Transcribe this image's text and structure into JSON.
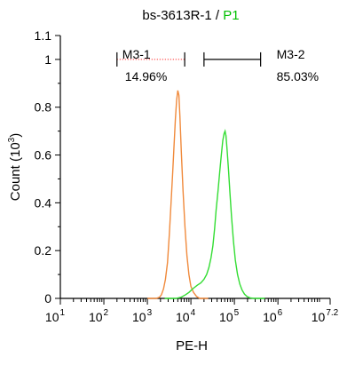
{
  "chart_data": {
    "type": "line",
    "title_parts": [
      {
        "text": "bs-3613R-1 / ",
        "color": "#000000"
      },
      {
        "text": "P1",
        "color": "#00c000"
      }
    ],
    "xlabel": "PE-H",
    "ylabel": "Count (10^3)",
    "ylabel_parts": {
      "base": "Count  (10",
      "exp": "3",
      "close": ")"
    },
    "x_scale": "log",
    "xlim": [
      10,
      15848931.92
    ],
    "ylim": [
      0,
      1.1
    ],
    "x_ticks": [
      {
        "base": "10",
        "exp": "1",
        "value": 10
      },
      {
        "base": "10",
        "exp": "2",
        "value": 100
      },
      {
        "base": "10",
        "exp": "3",
        "value": 1000
      },
      {
        "base": "10",
        "exp": "4",
        "value": 10000
      },
      {
        "base": "10",
        "exp": "5",
        "value": 100000
      },
      {
        "base": "10",
        "exp": "6",
        "value": 1000000
      },
      {
        "base": "10",
        "exp": "7.2",
        "value": 15848931.92
      }
    ],
    "y_ticks": [
      {
        "label": "0",
        "value": 0
      },
      {
        "label": "0.2",
        "value": 0.2
      },
      {
        "label": "0.4",
        "value": 0.4
      },
      {
        "label": "0.6",
        "value": 0.6
      },
      {
        "label": "0.8",
        "value": 0.8
      },
      {
        "label": "1",
        "value": 1.0
      },
      {
        "label": "1.1",
        "value": 1.1
      }
    ],
    "series": [
      {
        "color": "#f08a3c",
        "points": [
          [
            1000,
            0.0
          ],
          [
            1600,
            0.0
          ],
          [
            1900,
            0.005
          ],
          [
            2100,
            0.015
          ],
          [
            2350,
            0.04
          ],
          [
            2600,
            0.08
          ],
          [
            2900,
            0.15
          ],
          [
            3200,
            0.27
          ],
          [
            3500,
            0.4
          ],
          [
            3800,
            0.52
          ],
          [
            4100,
            0.64
          ],
          [
            4400,
            0.75
          ],
          [
            4700,
            0.83
          ],
          [
            5000,
            0.87
          ],
          [
            5300,
            0.85
          ],
          [
            5600,
            0.76
          ],
          [
            6000,
            0.62
          ],
          [
            6600,
            0.45
          ],
          [
            7300,
            0.3
          ],
          [
            8100,
            0.18
          ],
          [
            9000,
            0.1
          ],
          [
            10000,
            0.05
          ],
          [
            11500,
            0.025
          ],
          [
            13500,
            0.008
          ],
          [
            16000,
            0.0
          ],
          [
            25000,
            0.0
          ]
        ]
      },
      {
        "color": "#33dd33",
        "points": [
          [
            2500,
            0.0
          ],
          [
            4500,
            0.0
          ],
          [
            6000,
            0.005
          ],
          [
            7500,
            0.015
          ],
          [
            9000,
            0.025
          ],
          [
            11000,
            0.04
          ],
          [
            14000,
            0.055
          ],
          [
            17000,
            0.065
          ],
          [
            20000,
            0.08
          ],
          [
            23000,
            0.1
          ],
          [
            26000,
            0.13
          ],
          [
            29000,
            0.17
          ],
          [
            32000,
            0.22
          ],
          [
            35000,
            0.29
          ],
          [
            38000,
            0.37
          ],
          [
            42000,
            0.45
          ],
          [
            46000,
            0.53
          ],
          [
            50000,
            0.6
          ],
          [
            54000,
            0.66
          ],
          [
            58000,
            0.69
          ],
          [
            61000,
            0.7
          ],
          [
            64000,
            0.68
          ],
          [
            68000,
            0.62
          ],
          [
            73000,
            0.54
          ],
          [
            79000,
            0.44
          ],
          [
            86000,
            0.34
          ],
          [
            95000,
            0.24
          ],
          [
            105000,
            0.16
          ],
          [
            118000,
            0.1
          ],
          [
            133000,
            0.06
          ],
          [
            150000,
            0.035
          ],
          [
            170000,
            0.018
          ],
          [
            195000,
            0.008
          ],
          [
            230000,
            0.002
          ],
          [
            280000,
            0.0
          ],
          [
            500000,
            0.0
          ]
        ]
      }
    ],
    "gates": [
      {
        "name": "M3-1",
        "percent": "14.96%",
        "x_start": 200,
        "x_end": 7200,
        "y": 1.0,
        "line_style": "dotted-red"
      },
      {
        "name": "M3-2",
        "percent": "85.03%",
        "x_start": 20000,
        "x_end": 400000,
        "y": 1.0,
        "line_style": "solid"
      }
    ]
  }
}
